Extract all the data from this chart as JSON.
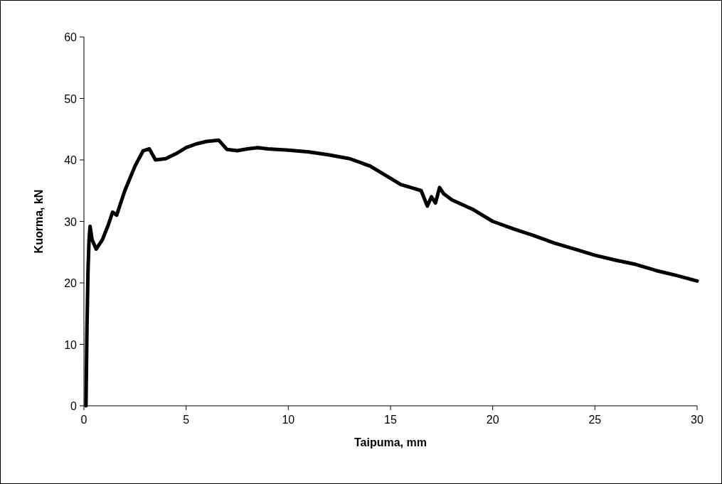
{
  "chart_data": {
    "type": "line",
    "xlabel": "Taipuma, mm",
    "ylabel": "Kuorma, kN",
    "xlim": [
      0,
      30
    ],
    "xticks": [
      0,
      5,
      10,
      15,
      20,
      25,
      30
    ],
    "ylim": [
      0,
      60
    ],
    "yticks": [
      0,
      10,
      20,
      30,
      40,
      50,
      60
    ],
    "grid": false,
    "series": [
      {
        "color": "#000000",
        "x": [
          0.1,
          0.15,
          0.2,
          0.25,
          0.3,
          0.4,
          0.6,
          0.9,
          1.2,
          1.4,
          1.6,
          2.0,
          2.5,
          2.9,
          3.2,
          3.5,
          4.0,
          4.5,
          5.0,
          5.5,
          6.0,
          6.6,
          7.0,
          7.5,
          8,
          8.5,
          9,
          10,
          11,
          12,
          13,
          14,
          15,
          15.5,
          16,
          16.5,
          16.8,
          17,
          17.2,
          17.4,
          17.6,
          18,
          19,
          20,
          21,
          22,
          23,
          24,
          25,
          26,
          27,
          28,
          29,
          30
        ],
        "values": [
          0,
          13,
          22,
          27,
          29.2,
          27,
          25.5,
          27,
          29.5,
          31.5,
          31,
          35,
          39,
          41.5,
          41.8,
          40,
          40.2,
          41,
          42,
          42.6,
          43,
          43.2,
          41.7,
          41.5,
          41.8,
          42,
          41.8,
          41.6,
          41.3,
          40.8,
          40.2,
          39,
          37,
          36,
          35.5,
          35,
          32.5,
          34,
          33,
          35.5,
          34.5,
          33.5,
          32,
          30,
          28.8,
          27.7,
          26.5,
          25.5,
          24.5,
          23.7,
          23,
          22,
          21.2,
          20.3
        ]
      }
    ]
  }
}
